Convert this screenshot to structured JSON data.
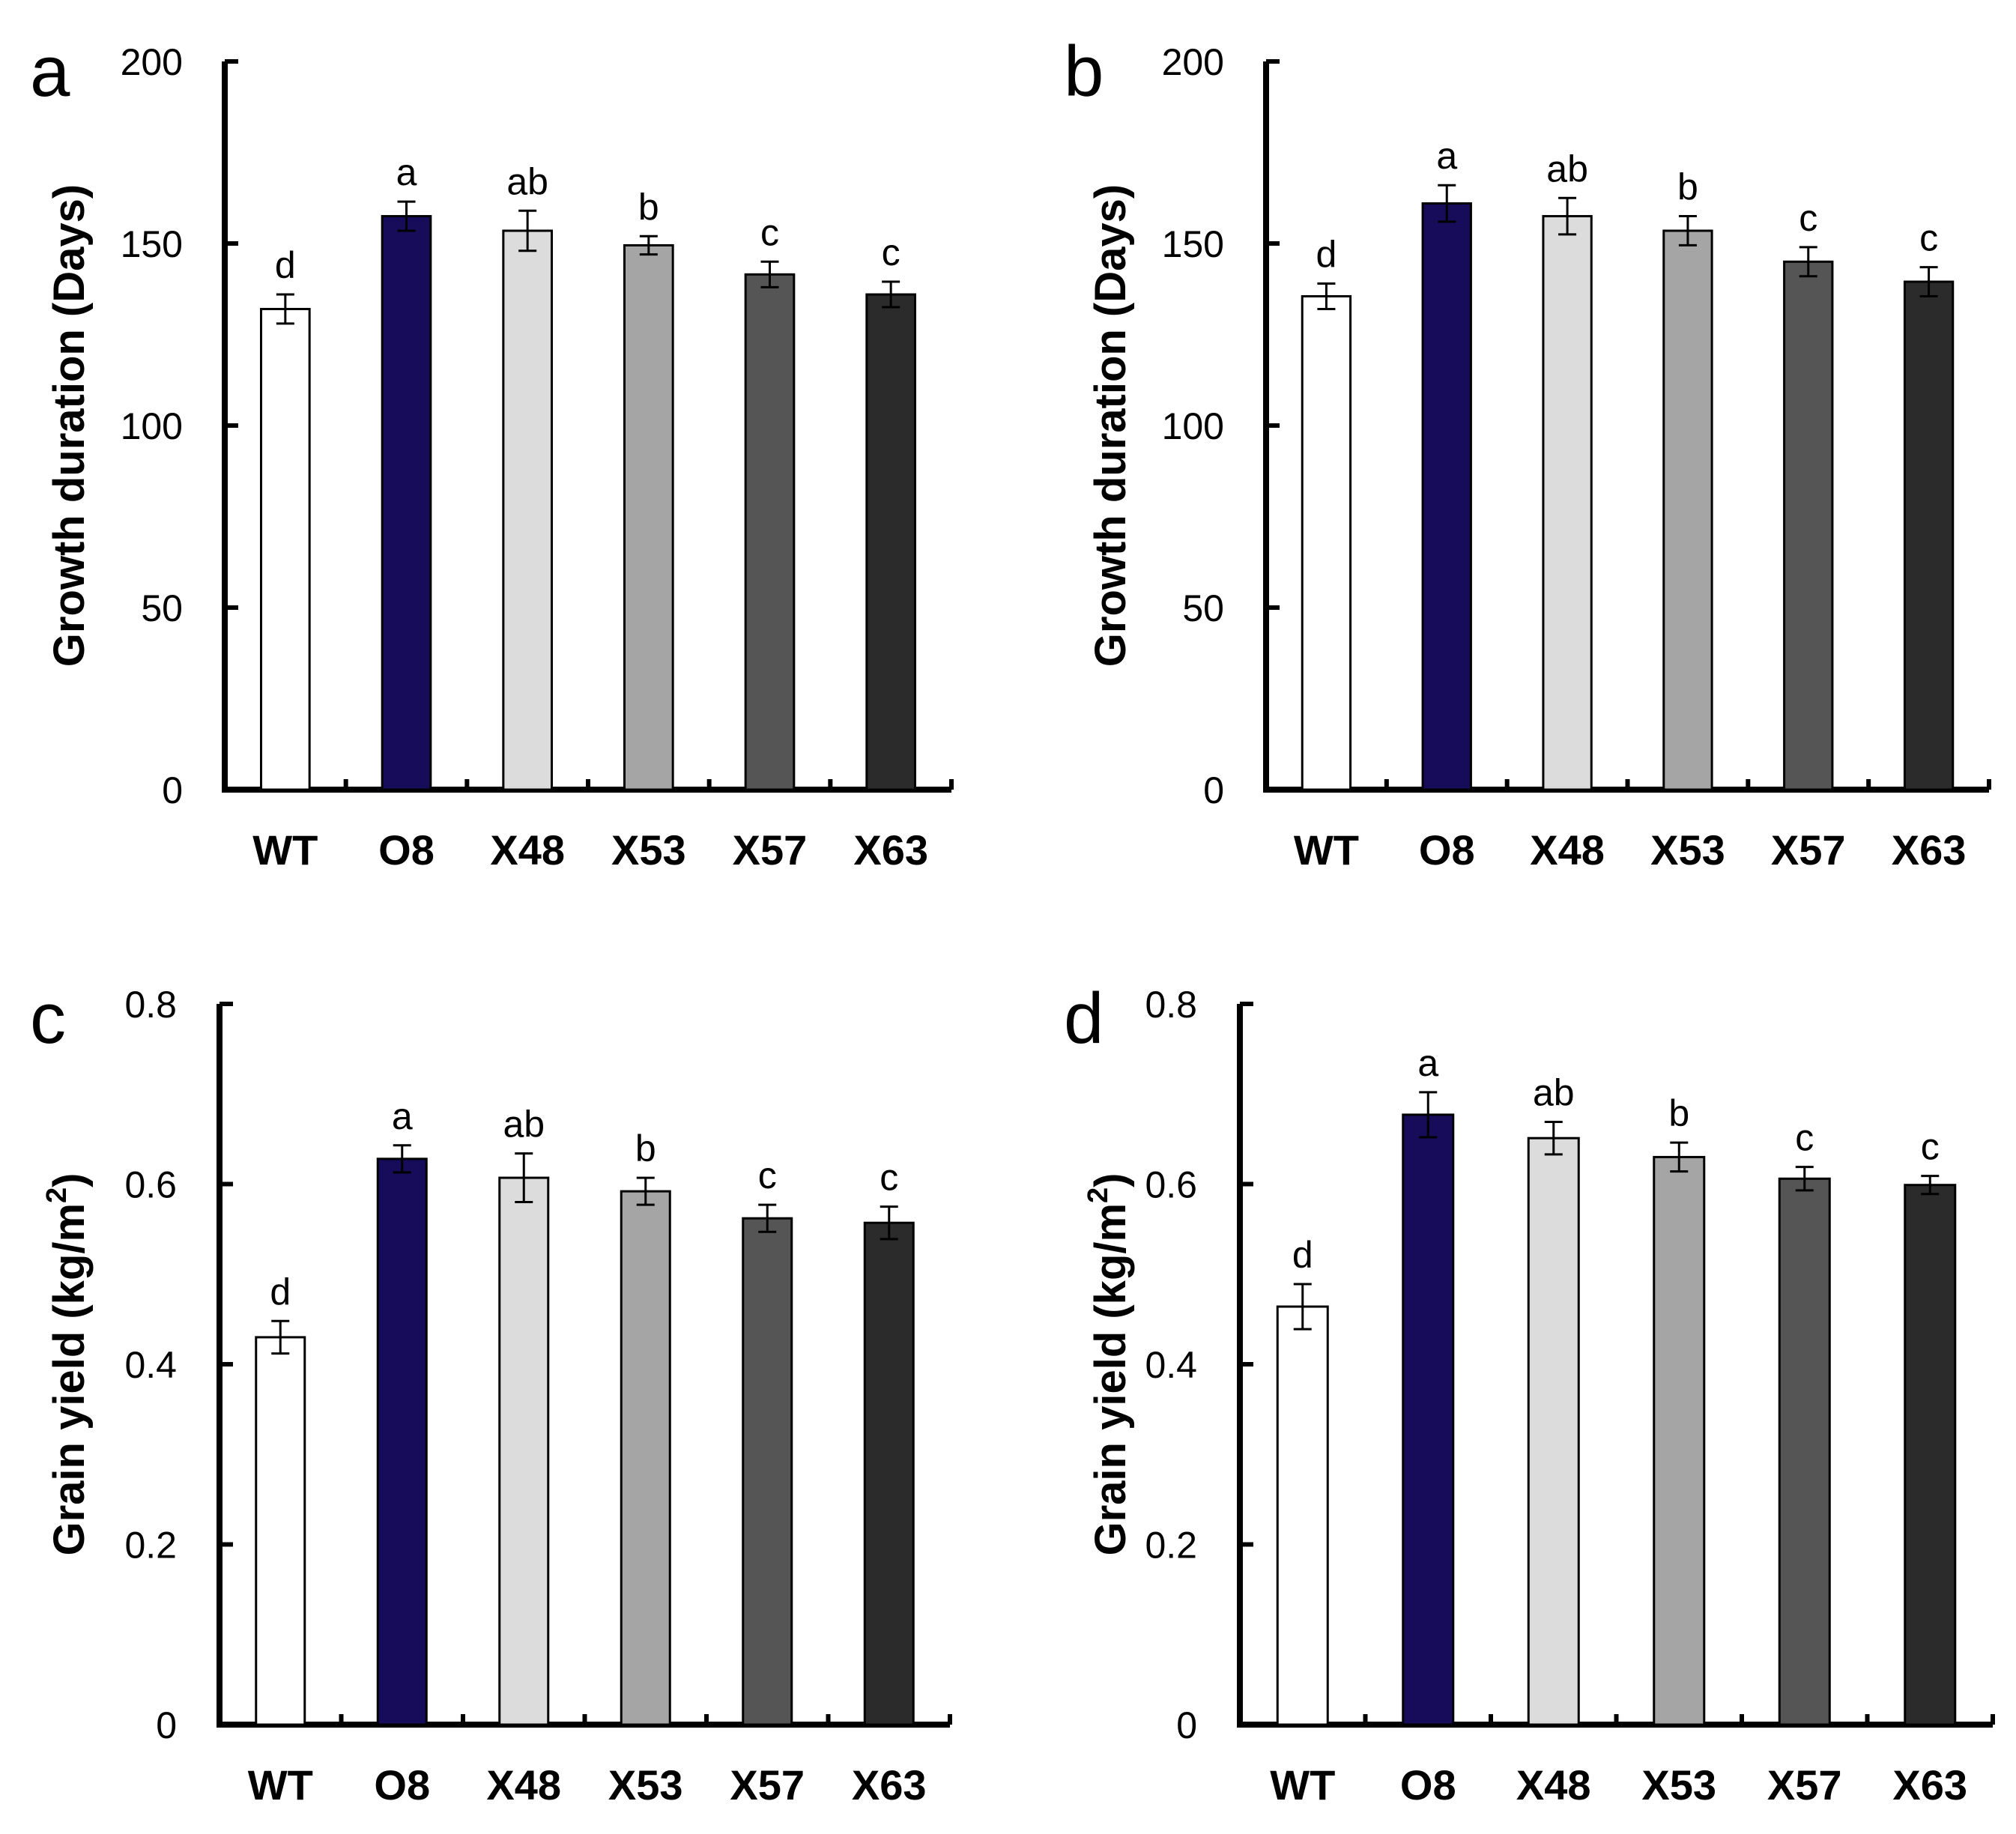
{
  "chart_data": [
    {
      "type": "bar",
      "panel": "a",
      "ylabel": "Growth duration (Days)",
      "ylim": [
        0,
        200
      ],
      "yticks": [
        "0",
        "50",
        "100",
        "150",
        "200"
      ],
      "categories": [
        "WT",
        "O8",
        "X48",
        "X53",
        "X57",
        "X63"
      ],
      "values": [
        132,
        157.5,
        153.5,
        149.5,
        141.5,
        136
      ],
      "errors": [
        4,
        4,
        5.5,
        2.5,
        3.5,
        3.5
      ],
      "letters": [
        "d",
        "a",
        "ab",
        "b",
        "c",
        "c"
      ],
      "colors": [
        "#ffffff",
        "#170c59",
        "#dcdcdc",
        "#a5a5a5",
        "#555555",
        "#2b2b2b"
      ]
    },
    {
      "type": "bar",
      "panel": "b",
      "ylabel": "Growth duration (Days)",
      "ylim": [
        0,
        200
      ],
      "yticks": [
        "0",
        "50",
        "100",
        "150",
        "200"
      ],
      "categories": [
        "WT",
        "O8",
        "X48",
        "X53",
        "X57",
        "X63"
      ],
      "values": [
        135.5,
        161,
        157.5,
        153.5,
        145,
        139.5
      ],
      "errors": [
        3.5,
        5,
        5,
        4,
        4,
        4
      ],
      "letters": [
        "d",
        "a",
        "ab",
        "b",
        "c",
        "c"
      ],
      "colors": [
        "#ffffff",
        "#170c59",
        "#dcdcdc",
        "#a5a5a5",
        "#555555",
        "#2b2b2b"
      ]
    },
    {
      "type": "bar",
      "panel": "c",
      "ylabel": "Grain yield (kg/m2)",
      "ylim": [
        0,
        0.8
      ],
      "yticks": [
        "0",
        "0.2",
        "0.4",
        "0.6",
        "0.8"
      ],
      "categories": [
        "WT",
        "O8",
        "X48",
        "X53",
        "X57",
        "X63"
      ],
      "values": [
        0.43,
        0.628,
        0.607,
        0.592,
        0.562,
        0.557
      ],
      "errors": [
        0.018,
        0.015,
        0.027,
        0.015,
        0.015,
        0.018
      ],
      "letters": [
        "d",
        "a",
        "ab",
        "b",
        "c",
        "c"
      ],
      "colors": [
        "#ffffff",
        "#170c59",
        "#dcdcdc",
        "#a5a5a5",
        "#555555",
        "#2b2b2b"
      ]
    },
    {
      "type": "bar",
      "panel": "d",
      "ylabel": "Grain yield (kg/m2)",
      "ylim": [
        0,
        0.8
      ],
      "yticks": [
        "0",
        "0.2",
        "0.4",
        "0.6",
        "0.8"
      ],
      "categories": [
        "WT",
        "O8",
        "X48",
        "X53",
        "X57",
        "X63"
      ],
      "values": [
        0.464,
        0.677,
        0.651,
        0.63,
        0.606,
        0.599
      ],
      "errors": [
        0.025,
        0.025,
        0.018,
        0.016,
        0.013,
        0.01
      ],
      "letters": [
        "d",
        "a",
        "ab",
        "b",
        "c",
        "c"
      ],
      "colors": [
        "#ffffff",
        "#170c59",
        "#dcdcdc",
        "#a5a5a5",
        "#555555",
        "#2b2b2b"
      ]
    }
  ]
}
